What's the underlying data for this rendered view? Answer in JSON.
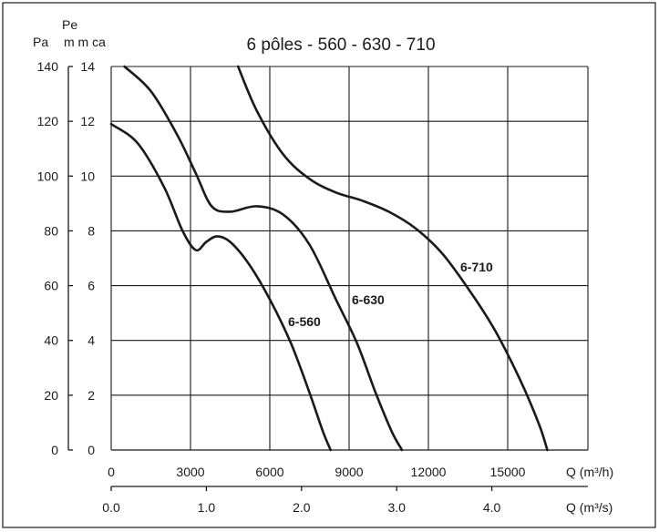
{
  "chart_data": {
    "type": "line",
    "title": "6 pôles - 560 - 630 - 710",
    "x_unit_label_m3h": "Q (m³/h)",
    "x_unit_label_m3s": "Q (m³/s)",
    "y_unit_label_pa": "Pa",
    "y_unit_label_pe": "Pe",
    "y_unit_label_mmca": "m m ca",
    "xlim_m3h": [
      0,
      18000
    ],
    "ylim_pa": [
      0,
      140
    ],
    "ylim_mmca": [
      0,
      14
    ],
    "x_ticks_m3h": [
      "0",
      "3000",
      "6000",
      "9000",
      "12000",
      "15000"
    ],
    "x_ticks_m3s": [
      "0.0",
      "1.0",
      "2.0",
      "3.0",
      "4.0"
    ],
    "y_ticks_pa": [
      "0",
      "20",
      "40",
      "60",
      "80",
      "100",
      "120",
      "140"
    ],
    "y_ticks_mmca": [
      "0",
      "2",
      "4",
      "6",
      "8",
      "10",
      "12",
      "14"
    ],
    "grid": true,
    "series": [
      {
        "name": "6-560",
        "x": [
          0,
          1000,
          2000,
          2700,
          3200,
          3600,
          4000,
          4500,
          5200,
          6000,
          6800,
          7500,
          8000,
          8300
        ],
        "y": [
          119,
          112,
          96,
          80,
          73,
          76,
          78,
          76,
          68,
          55,
          39,
          21,
          7,
          0
        ]
      },
      {
        "name": "6-630",
        "x": [
          500,
          1500,
          2500,
          3200,
          3800,
          4500,
          5500,
          6500,
          7500,
          8500,
          9300,
          10000,
          10600,
          11000
        ],
        "y": [
          140,
          131,
          115,
          101,
          89,
          87,
          89,
          86,
          75,
          55,
          39,
          21,
          7,
          0
        ]
      },
      {
        "name": "6-710",
        "x": [
          4800,
          5500,
          6500,
          7500,
          8500,
          9500,
          10500,
          11500,
          12500,
          13500,
          14500,
          15500,
          16200,
          16500
        ],
        "y": [
          140,
          124,
          108,
          99,
          94,
          91,
          87,
          81,
          72,
          59,
          44,
          25,
          9,
          0
        ]
      }
    ]
  }
}
